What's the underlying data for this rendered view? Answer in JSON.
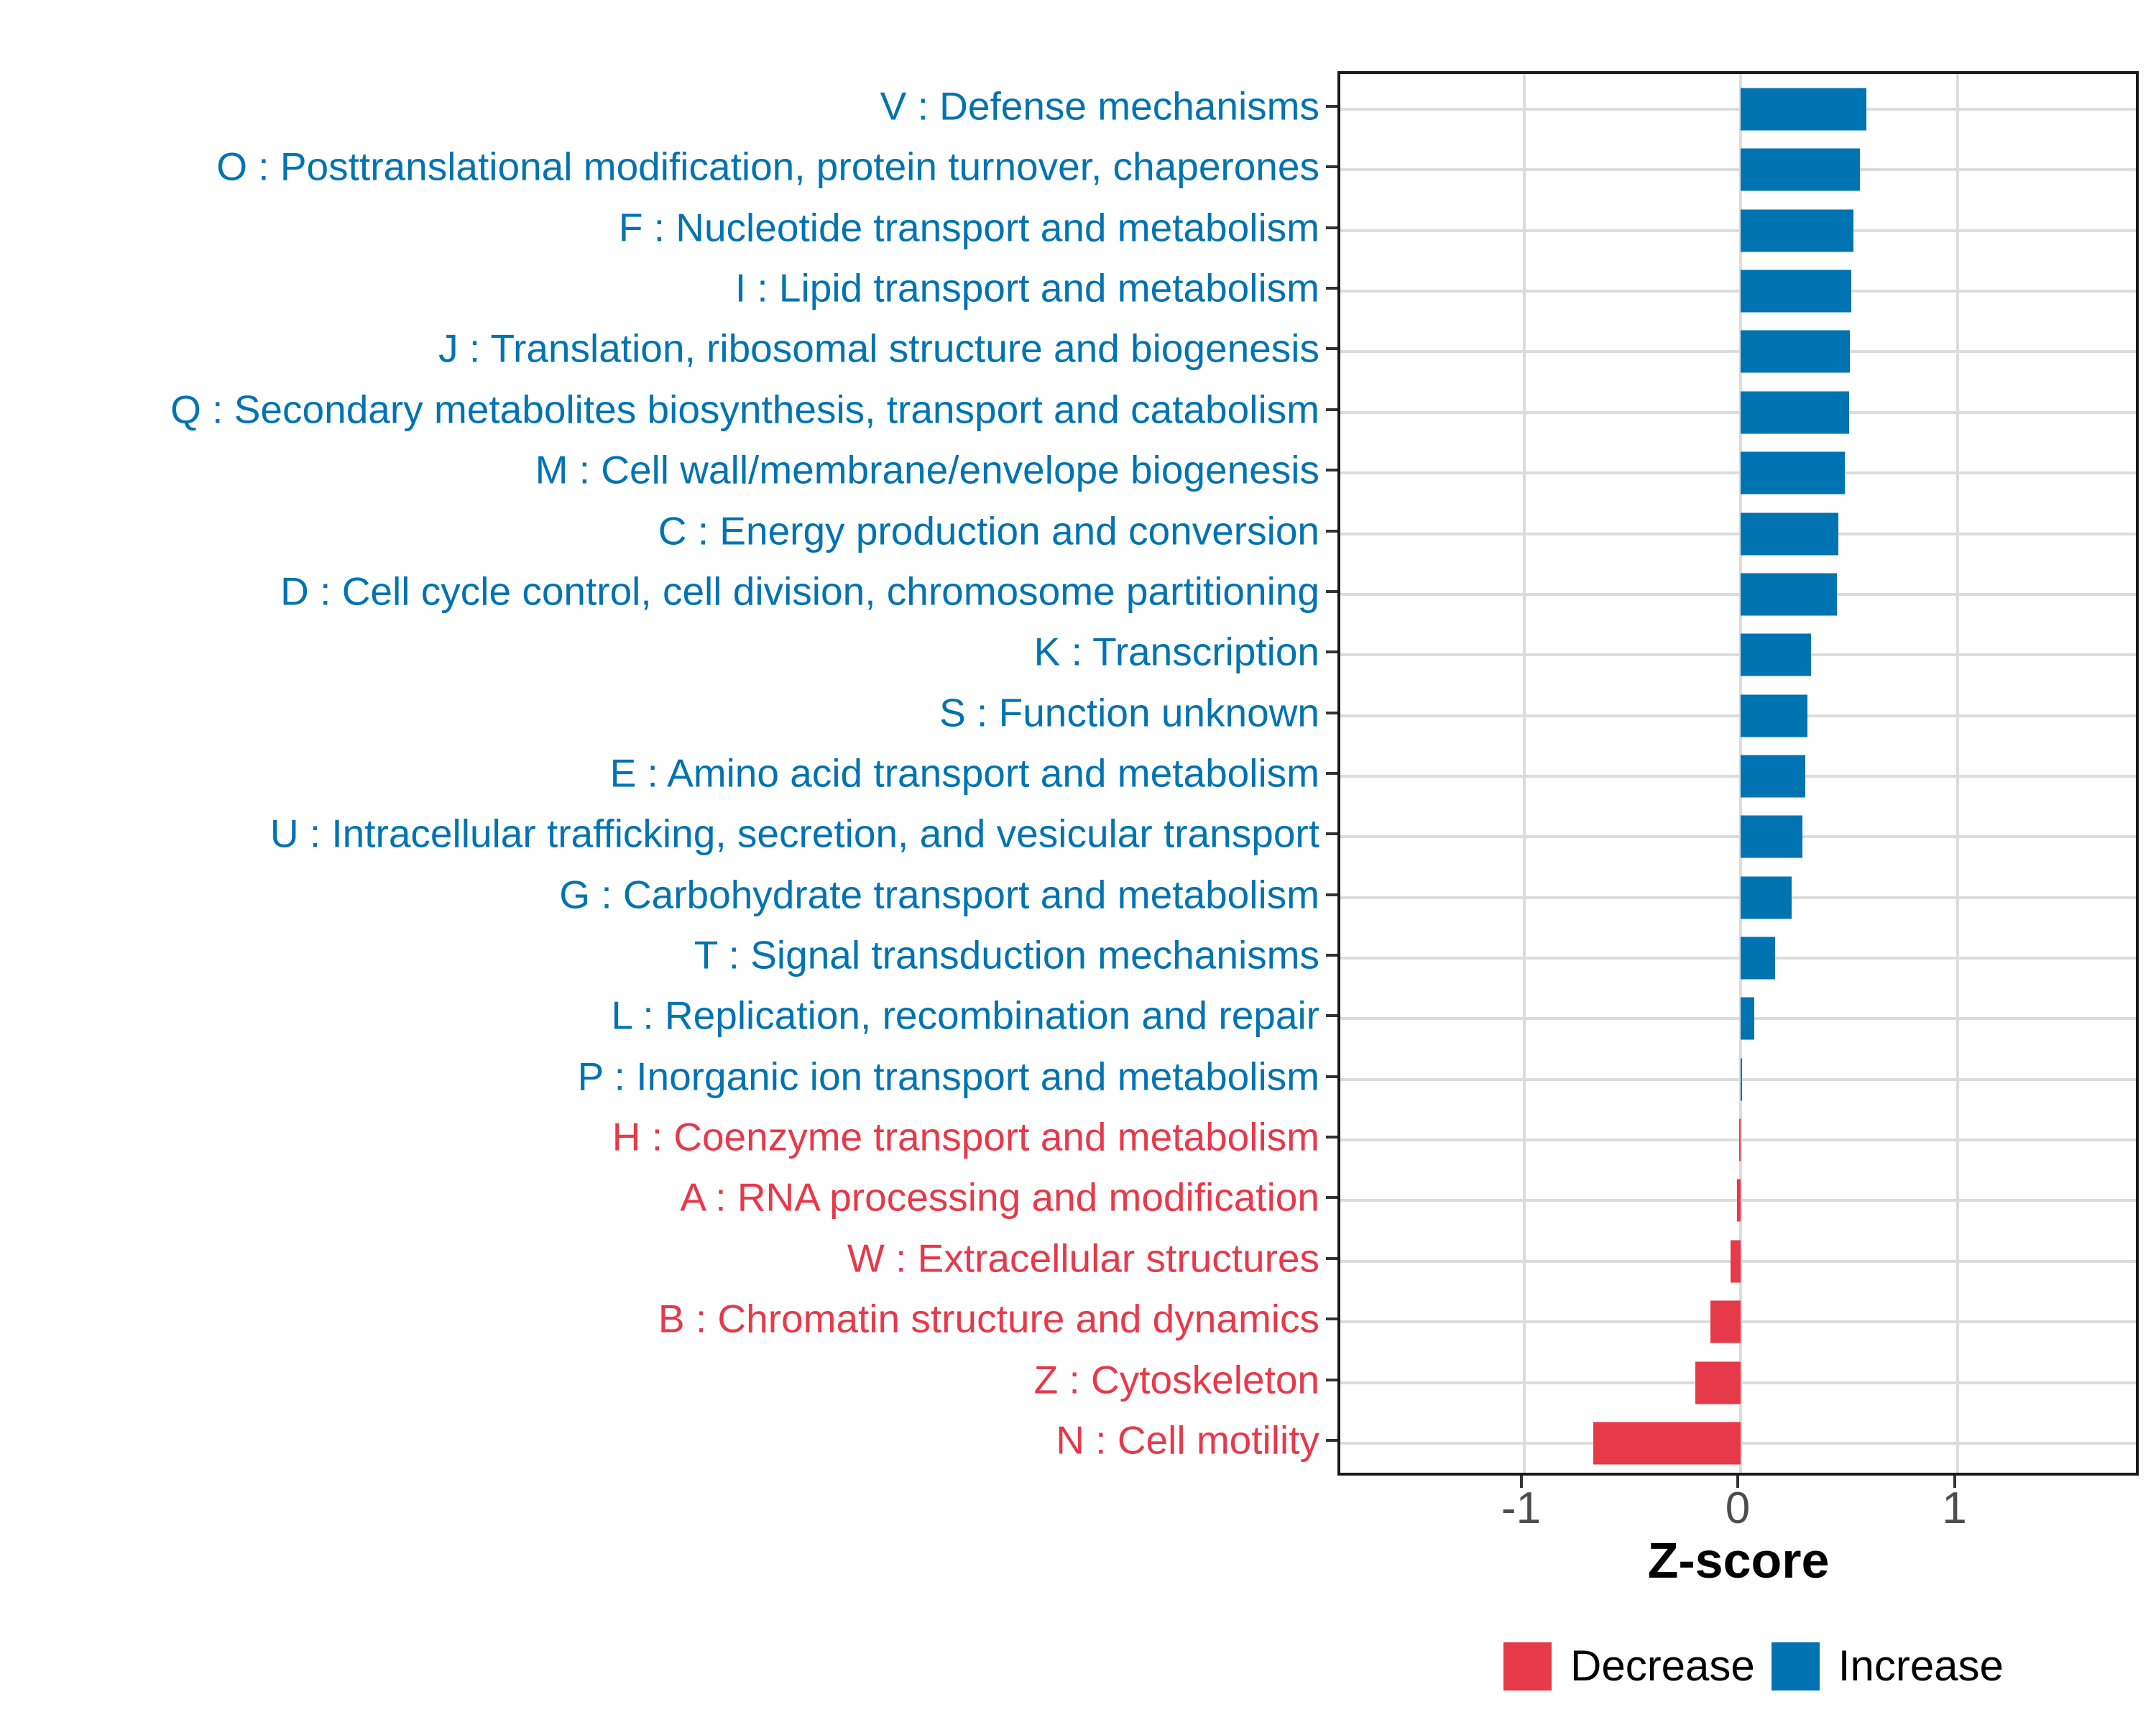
{
  "chart_data": {
    "type": "bar",
    "orientation": "horizontal",
    "xlabel": "Z-score",
    "x_ticks": [
      -1,
      0,
      1
    ],
    "x_tick_labels": [
      "-1",
      "0",
      "1"
    ],
    "xlim": [
      -1.85,
      1.85
    ],
    "grid": "major-only",
    "legend_position": "bottom",
    "legend": [
      {
        "label": "Decrease",
        "color": "#e6394a"
      },
      {
        "label": "Increase",
        "color": "#0073b2"
      }
    ],
    "categories": [
      {
        "label": "V : Defense mechanisms",
        "value": 0.58,
        "direction": "increase"
      },
      {
        "label": "O : Posttranslational modification, protein turnover, chaperones",
        "value": 0.55,
        "direction": "increase"
      },
      {
        "label": "F : Nucleotide transport and metabolism",
        "value": 0.52,
        "direction": "increase"
      },
      {
        "label": "I : Lipid transport and metabolism",
        "value": 0.51,
        "direction": "increase"
      },
      {
        "label": "J : Translation, ribosomal structure and biogenesis",
        "value": 0.505,
        "direction": "increase"
      },
      {
        "label": "Q : Secondary metabolites biosynthesis, transport and catabolism",
        "value": 0.5,
        "direction": "increase"
      },
      {
        "label": "M : Cell wall/membrane/envelope biogenesis",
        "value": 0.48,
        "direction": "increase"
      },
      {
        "label": "C : Energy production and conversion",
        "value": 0.45,
        "direction": "increase"
      },
      {
        "label": "D : Cell cycle control, cell division, chromosome partitioning",
        "value": 0.445,
        "direction": "increase"
      },
      {
        "label": "K : Transcription",
        "value": 0.325,
        "direction": "increase"
      },
      {
        "label": "S : Function unknown",
        "value": 0.31,
        "direction": "increase"
      },
      {
        "label": "E : Amino acid transport and metabolism",
        "value": 0.3,
        "direction": "increase"
      },
      {
        "label": "U : Intracellular trafficking, secretion, and vesicular transport",
        "value": 0.285,
        "direction": "increase"
      },
      {
        "label": "G : Carbohydrate transport and metabolism",
        "value": 0.235,
        "direction": "increase"
      },
      {
        "label": "T : Signal transduction mechanisms",
        "value": 0.16,
        "direction": "increase"
      },
      {
        "label": "L : Replication, recombination and repair",
        "value": 0.062,
        "direction": "increase"
      },
      {
        "label": "P : Inorganic ion transport and metabolism",
        "value": 0.007,
        "direction": "increase"
      },
      {
        "label": "H : Coenzyme transport and metabolism",
        "value": -0.005,
        "direction": "decrease"
      },
      {
        "label": "A : RNA processing and modification",
        "value": -0.016,
        "direction": "decrease"
      },
      {
        "label": "W : Extracellular structures",
        "value": -0.048,
        "direction": "decrease"
      },
      {
        "label": "B : Chromatin structure and dynamics",
        "value": -0.14,
        "direction": "decrease"
      },
      {
        "label": "Z : Cytoskeleton",
        "value": -0.21,
        "direction": "decrease"
      },
      {
        "label": "N : Cell motility",
        "value": -0.68,
        "direction": "decrease"
      }
    ]
  },
  "colors": {
    "increase": "#0073b2",
    "decrease": "#e6394a",
    "gridline": "#dcdcdc",
    "panel_border": "#1a1a1a",
    "tick_label": "#4d4d4d",
    "axis_title": "#000000"
  }
}
